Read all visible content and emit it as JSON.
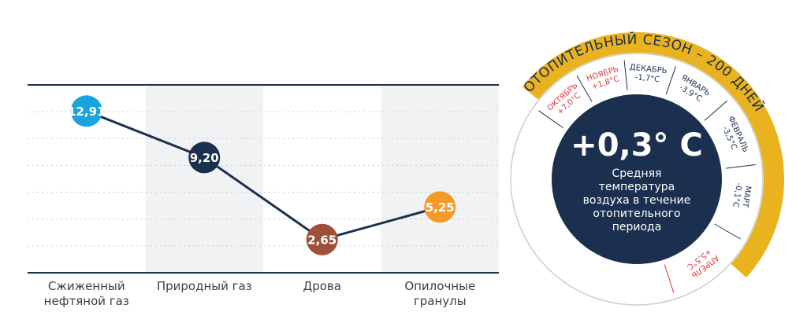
{
  "chart_data": {
    "type": "line",
    "categories": [
      "Сжиженный нефтяной газ",
      "Природный газ",
      "Дрова",
      "Опилочные гранулы"
    ],
    "values": [
      12.91,
      9.2,
      2.65,
      5.25
    ],
    "value_labels": [
      "12,91",
      "9,20",
      "2,65",
      "5,25"
    ],
    "point_colors": [
      "#1aa3dc",
      "#1b2f4e",
      "#a0503a",
      "#f39a2b"
    ],
    "color": "#1b2f4e",
    "ylim": [
      0,
      15
    ]
  },
  "heating_season": {
    "title": "ОТОПИТЕЛЬНЫЙ СЕЗОН – 200 ДНЕЙ",
    "value": "+0,3° C",
    "caption": [
      "Средняя",
      "температура",
      "воздуха в течение",
      "отопительного",
      "периода"
    ],
    "months": [
      {
        "name": "ОКТЯБРЬ",
        "temp": "+7,0°C",
        "color": "#d9393e"
      },
      {
        "name": "НОЯБРЬ",
        "temp": "+1,8°C",
        "color": "#d9393e"
      },
      {
        "name": "ДЕКАБРЬ",
        "temp": "-1,7°C",
        "color": "#1b2f4e"
      },
      {
        "name": "ЯНВАРЬ",
        "temp": "-3,9°C",
        "color": "#1b2f4e"
      },
      {
        "name": "ФЕВРАЛЬ",
        "temp": "-3,5°C",
        "color": "#1b2f4e"
      },
      {
        "name": "МАРТ",
        "temp": "-0,1°C",
        "color": "#1b2f4e"
      },
      {
        "name": "АПРЕЛЬ",
        "temp": "+5,5°C",
        "color": "#d9393e"
      }
    ]
  }
}
